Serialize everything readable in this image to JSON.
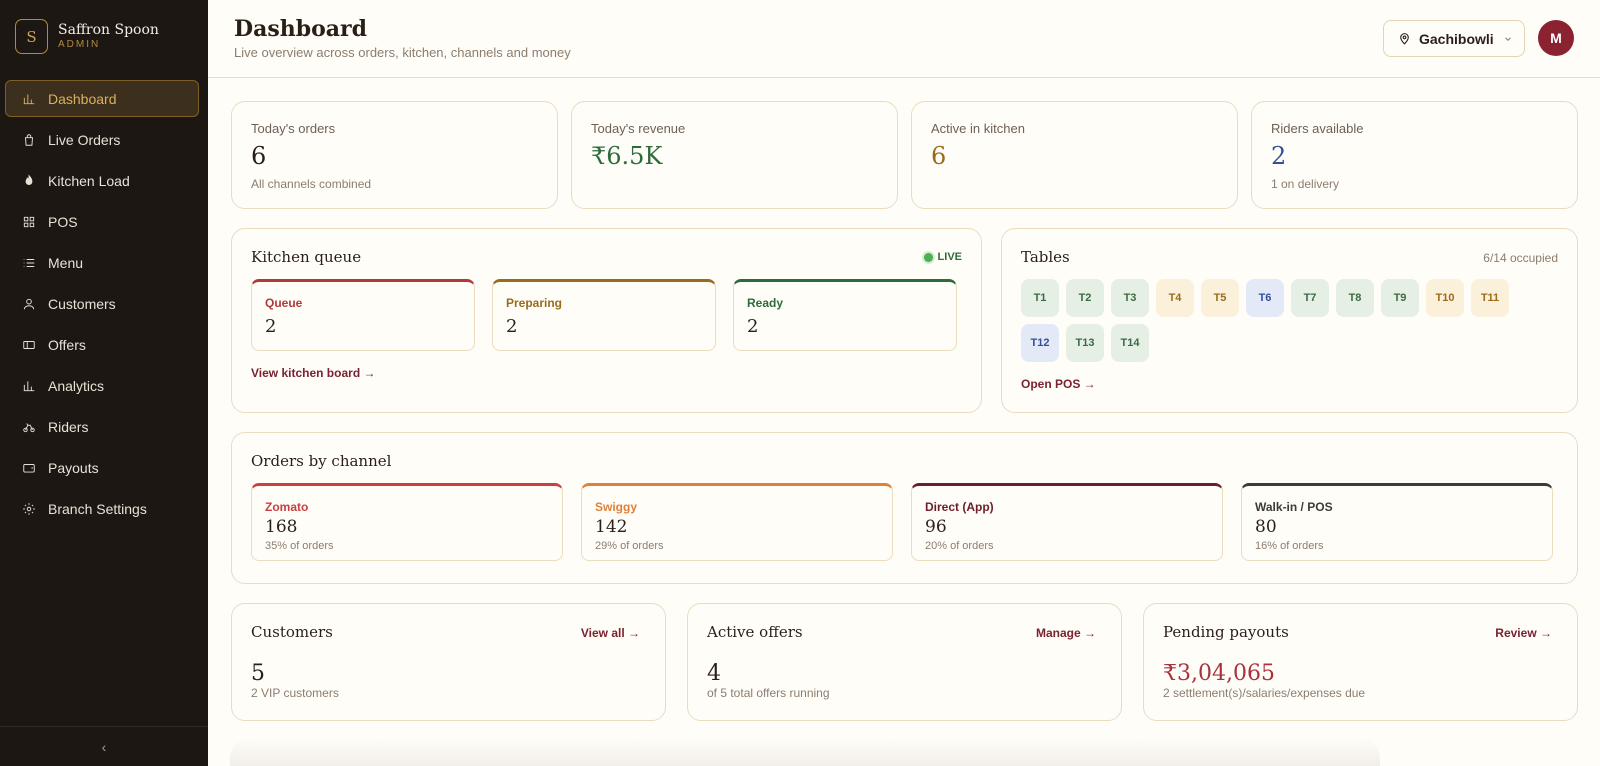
{
  "brand": {
    "logo_letter": "S",
    "name": "Saffron Spoon",
    "role": "ADMIN"
  },
  "sidebar": {
    "items": [
      {
        "label": "Dashboard",
        "icon": "bar-chart-icon",
        "active": true
      },
      {
        "label": "Live Orders",
        "icon": "shopping-bag-icon"
      },
      {
        "label": "Kitchen Load",
        "icon": "flame-icon"
      },
      {
        "label": "POS",
        "icon": "grid-icon"
      },
      {
        "label": "Menu",
        "icon": "list-icon"
      },
      {
        "label": "Customers",
        "icon": "user-icon"
      },
      {
        "label": "Offers",
        "icon": "ticket-icon"
      },
      {
        "label": "Analytics",
        "icon": "bar-chart-icon"
      },
      {
        "label": "Riders",
        "icon": "bike-icon"
      },
      {
        "label": "Payouts",
        "icon": "wallet-icon"
      },
      {
        "label": "Branch Settings",
        "icon": "gear-icon"
      }
    ],
    "collapse_glyph": "‹"
  },
  "header": {
    "title": "Dashboard",
    "subtitle": "Live overview across orders, kitchen, channels and money",
    "branch": "Gachibowli",
    "avatar_initial": "M"
  },
  "stats": [
    {
      "label": "Today's orders",
      "value": "6",
      "note": "All channels combined",
      "color": "#2a1f17"
    },
    {
      "label": "Today's revenue",
      "value": "₹6.5K",
      "note": "",
      "color": "#2e6b3a"
    },
    {
      "label": "Active in kitchen",
      "value": "6",
      "note": "",
      "color": "#9a6b1c"
    },
    {
      "label": "Riders available",
      "value": "2",
      "note": "1 on delivery",
      "color": "#34509a"
    }
  ],
  "kitchen": {
    "title": "Kitchen queue",
    "live": "LIVE",
    "columns": [
      {
        "label": "Queue",
        "value": "2",
        "color": "#b03a3a"
      },
      {
        "label": "Preparing",
        "value": "2",
        "color": "#9a6b1c"
      },
      {
        "label": "Ready",
        "value": "2",
        "color": "#2e6b3a"
      }
    ],
    "link": "View kitchen board →"
  },
  "tables": {
    "title": "Tables",
    "occupied": "6/14 occupied",
    "items": [
      {
        "label": "T1",
        "status": "free"
      },
      {
        "label": "T2",
        "status": "free"
      },
      {
        "label": "T3",
        "status": "free"
      },
      {
        "label": "T4",
        "status": "busy"
      },
      {
        "label": "T5",
        "status": "busy"
      },
      {
        "label": "T6",
        "status": "res"
      },
      {
        "label": "T7",
        "status": "free"
      },
      {
        "label": "T8",
        "status": "free"
      },
      {
        "label": "T9",
        "status": "free"
      },
      {
        "label": "T10",
        "status": "busy"
      },
      {
        "label": "T11",
        "status": "busy"
      },
      {
        "label": "T12",
        "status": "res"
      },
      {
        "label": "T13",
        "status": "free"
      },
      {
        "label": "T14",
        "status": "free"
      }
    ],
    "link": "Open POS →"
  },
  "channels": {
    "title": "Orders by channel",
    "items": [
      {
        "name": "Zomato",
        "value": "168",
        "share": "35% of orders",
        "color": "#c8403f"
      },
      {
        "name": "Swiggy",
        "value": "142",
        "share": "29% of orders",
        "color": "#e0813a"
      },
      {
        "name": "Direct (App)",
        "value": "96",
        "share": "20% of orders",
        "color": "#6b1f2a"
      },
      {
        "name": "Walk-in / POS",
        "value": "80",
        "share": "16% of orders",
        "color": "#3e3a36"
      }
    ]
  },
  "summary": [
    {
      "title": "Customers",
      "link": "View all →",
      "value": "5",
      "note": "2 VIP customers",
      "color": "#2a1f17"
    },
    {
      "title": "Active offers",
      "link": "Manage →",
      "value": "4",
      "note": "of 5 total offers running",
      "color": "#2a1f17"
    },
    {
      "title": "Pending payouts",
      "link": "Review →",
      "value": "₹3,04,065",
      "note": "2 settlement(s)/salaries/expenses due",
      "color": "#a8323e"
    }
  ]
}
